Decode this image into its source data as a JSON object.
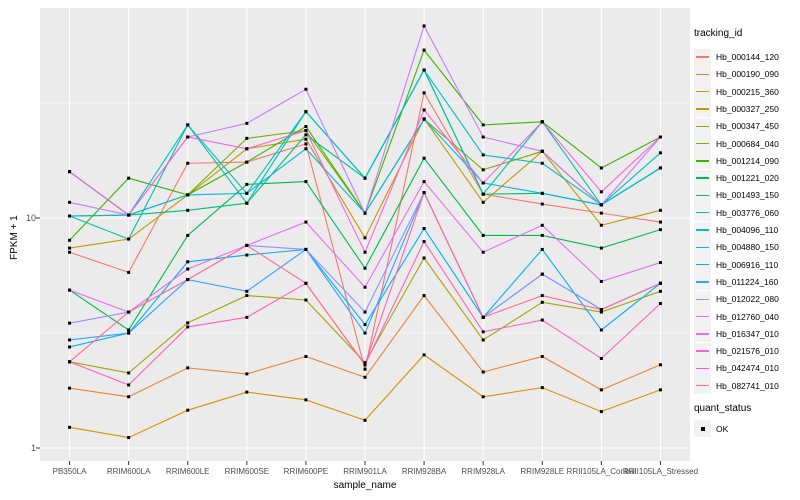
{
  "figure": {
    "x_axis_title": "sample_name",
    "y_axis_title": "FPKM + 1"
  },
  "legend": {
    "tracking_title": "tracking_id",
    "quant_title": "quant_status",
    "quant_ok_label": "OK",
    "quant_marker": "black-square-point-icon"
  },
  "chart_data": {
    "type": "line",
    "title": "",
    "xlabel": "sample_name",
    "ylabel": "FPKM + 1",
    "y_scale": "log10",
    "ylim": [
      1,
      80
    ],
    "y_major_ticks": [
      1,
      10
    ],
    "y_minor_gridlines": [
      3.162,
      31.623
    ],
    "grid": true,
    "legend_position": "right",
    "panel_background": "#EBEBEB",
    "gridline_color": "#FFFFFF",
    "point_color": "#000000",
    "tick_color": "#333333",
    "categories": [
      "PB350LA",
      "RRIM600LA",
      "RRIM600LE",
      "RRIM600SE",
      "RRIM600PE",
      "RRIM901LA",
      "RRIM928BA",
      "RRIM928LA",
      "RRIM928LE",
      "RRII105LA_Control",
      "RRII105LA_Stressed"
    ],
    "series": [
      {
        "name": "Hb_000144_120",
        "color": "#F8766D",
        "values": [
          7.1,
          5.8,
          17.3,
          17.5,
          21.0,
          2.2,
          35.0,
          12.7,
          11.5,
          10.5,
          9.6
        ]
      },
      {
        "name": "Hb_000190_090",
        "color": "#EA8331",
        "values": [
          1.82,
          1.67,
          2.23,
          2.1,
          2.5,
          2.03,
          4.6,
          2.14,
          2.5,
          1.79,
          2.3
        ]
      },
      {
        "name": "Hb_000215_360",
        "color": "#D89000",
        "values": [
          1.23,
          1.11,
          1.46,
          1.75,
          1.62,
          1.32,
          2.54,
          1.67,
          1.83,
          1.44,
          1.79
        ]
      },
      {
        "name": "Hb_000327_250",
        "color": "#C09B00",
        "values": [
          7.4,
          8.1,
          12.6,
          20.0,
          22.0,
          8.2,
          27.0,
          11.7,
          19.5,
          9.3,
          10.8
        ]
      },
      {
        "name": "Hb_000347_450",
        "color": "#A3A500",
        "values": [
          2.37,
          2.12,
          3.5,
          4.6,
          4.4,
          2.35,
          6.7,
          2.95,
          4.3,
          3.9,
          4.8
        ]
      },
      {
        "name": "Hb_000684_040",
        "color": "#7CAE00",
        "values": [
          10.2,
          10.3,
          12.6,
          22.2,
          24.0,
          10.5,
          26.9,
          16.2,
          19.5,
          11.4,
          16.5
        ]
      },
      {
        "name": "Hb_001214_090",
        "color": "#39B600",
        "values": [
          8.0,
          14.9,
          12.6,
          17.5,
          25.0,
          10.5,
          53.7,
          25.4,
          26.2,
          16.5,
          22.5
        ]
      },
      {
        "name": "Hb_001221_020",
        "color": "#00BB4E",
        "values": [
          4.86,
          3.26,
          8.4,
          14.0,
          14.4,
          6.05,
          18.2,
          8.4,
          8.4,
          7.4,
          8.9
        ]
      },
      {
        "name": "Hb_001493_150",
        "color": "#00BF7D",
        "values": [
          15.9,
          10.3,
          10.8,
          11.6,
          23.0,
          14.9,
          44.0,
          12.7,
          12.8,
          11.4,
          16.5
        ]
      },
      {
        "name": "Hb_003776_060",
        "color": "#00C1A3",
        "values": [
          10.2,
          8.1,
          25.4,
          11.6,
          29.0,
          14.9,
          44.0,
          12.7,
          26.2,
          11.4,
          16.5
        ]
      },
      {
        "name": "Hb_004096_110",
        "color": "#00BFC4",
        "values": [
          15.9,
          10.3,
          25.4,
          12.8,
          29.0,
          14.9,
          44.0,
          18.8,
          17.3,
          11.4,
          19.2
        ]
      },
      {
        "name": "Hb_004880_150",
        "color": "#00BAE0",
        "values": [
          10.2,
          10.3,
          12.6,
          12.8,
          20.0,
          10.5,
          26.9,
          14.2,
          12.8,
          11.4,
          16.5
        ]
      },
      {
        "name": "Hb_006916_110",
        "color": "#00B0F6",
        "values": [
          2.75,
          3.16,
          6.45,
          6.9,
          7.3,
          3.44,
          9.0,
          3.7,
          7.3,
          3.26,
          5.2
        ]
      },
      {
        "name": "Hb_011224_160",
        "color": "#35A2FF",
        "values": [
          2.95,
          3.16,
          5.4,
          4.8,
          7.3,
          3.16,
          12.9,
          3.7,
          5.7,
          4.0,
          5.2
        ]
      },
      {
        "name": "Hb_012022_080",
        "color": "#9590FF",
        "values": [
          3.49,
          3.9,
          5.4,
          7.6,
          7.3,
          3.9,
          12.9,
          3.7,
          5.7,
          4.0,
          5.2
        ]
      },
      {
        "name": "Hb_012760_040",
        "color": "#C77CFF",
        "values": [
          11.7,
          10.3,
          22.5,
          25.8,
          36.3,
          10.5,
          68.4,
          22.5,
          19.5,
          11.4,
          22.5
        ]
      },
      {
        "name": "Hb_016347_010",
        "color": "#E76BF3",
        "values": [
          4.86,
          3.9,
          6.0,
          7.6,
          9.6,
          5.0,
          14.4,
          7.1,
          9.3,
          5.3,
          6.4
        ]
      },
      {
        "name": "Hb_021576_010",
        "color": "#FA62DB",
        "values": [
          15.9,
          10.3,
          22.5,
          20.0,
          24.0,
          7.1,
          29.5,
          14.2,
          26.2,
          13.0,
          22.5
        ]
      },
      {
        "name": "Hb_042474_010",
        "color": "#FF62BC",
        "values": [
          2.37,
          1.88,
          3.36,
          3.7,
          5.2,
          2.3,
          7.9,
          3.2,
          3.6,
          2.45,
          4.25
        ]
      },
      {
        "name": "Hb_082741_010",
        "color": "#FF6A98",
        "values": [
          2.37,
          3.9,
          5.4,
          7.6,
          5.2,
          2.3,
          12.9,
          3.7,
          4.6,
          4.0,
          5.2
        ]
      }
    ]
  }
}
